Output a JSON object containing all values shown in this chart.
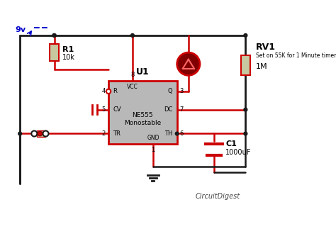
{
  "background_color": "#ffffff",
  "wire_color": "#1a1a1a",
  "red_wire_color": "#cc0000",
  "component_fill": "#b0b0b0",
  "component_edge": "#cc0000",
  "blue_color": "#0000cc",
  "title_text": "CircuitDigest",
  "supply_label": "9v",
  "r1_label": "R1",
  "r1_val": "10k",
  "rv1_label": "RV1",
  "rv1_desc": "Set on 55K for 1 Minute timer",
  "rv1_val": "1M",
  "u1_label": "U1",
  "u1_chip": "NE555\nMonostable",
  "c1_label": "C1",
  "c1_val": "1000uF",
  "pin_r": "R",
  "pin_vcc": "VCC",
  "pin_q": "Q",
  "pin_dc": "DC",
  "pin_cv": "CV",
  "pin_tr": "TR",
  "pin_gnd": "GND",
  "pin_th": "TH",
  "pin_nums": {
    "r": "4",
    "vcc": "8",
    "q": "3",
    "dc": "7",
    "cv": "5",
    "tr": "2",
    "gnd": "1",
    "th": "6"
  }
}
